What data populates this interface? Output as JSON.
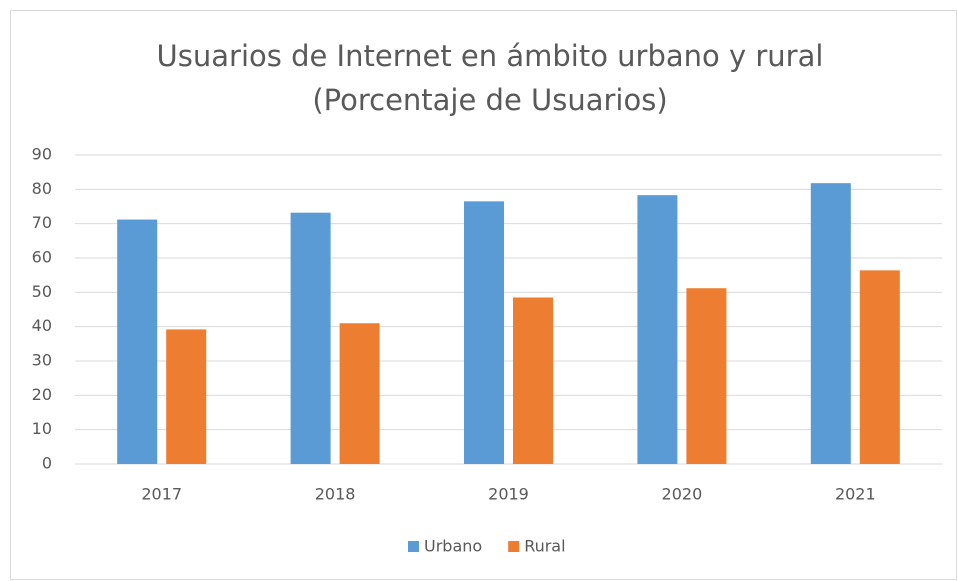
{
  "chart_data": {
    "type": "bar",
    "title": "Usuarios de Internet en ámbito urbano y rural",
    "subtitle": "(Porcentaje de Usuarios)",
    "categories": [
      "2017",
      "2018",
      "2019",
      "2020",
      "2021"
    ],
    "series": [
      {
        "name": "Urbano",
        "color": "#5b9bd5",
        "values": [
          71.2,
          73.2,
          76.5,
          78.3,
          81.8
        ]
      },
      {
        "name": "Rural",
        "color": "#ed7d31",
        "values": [
          39.2,
          41.0,
          48.5,
          51.2,
          56.4
        ]
      }
    ],
    "ylim": [
      0,
      90
    ],
    "yticks": [
      0,
      10,
      20,
      30,
      40,
      50,
      60,
      70,
      80,
      90
    ],
    "grid": true,
    "legend": "bottom"
  }
}
